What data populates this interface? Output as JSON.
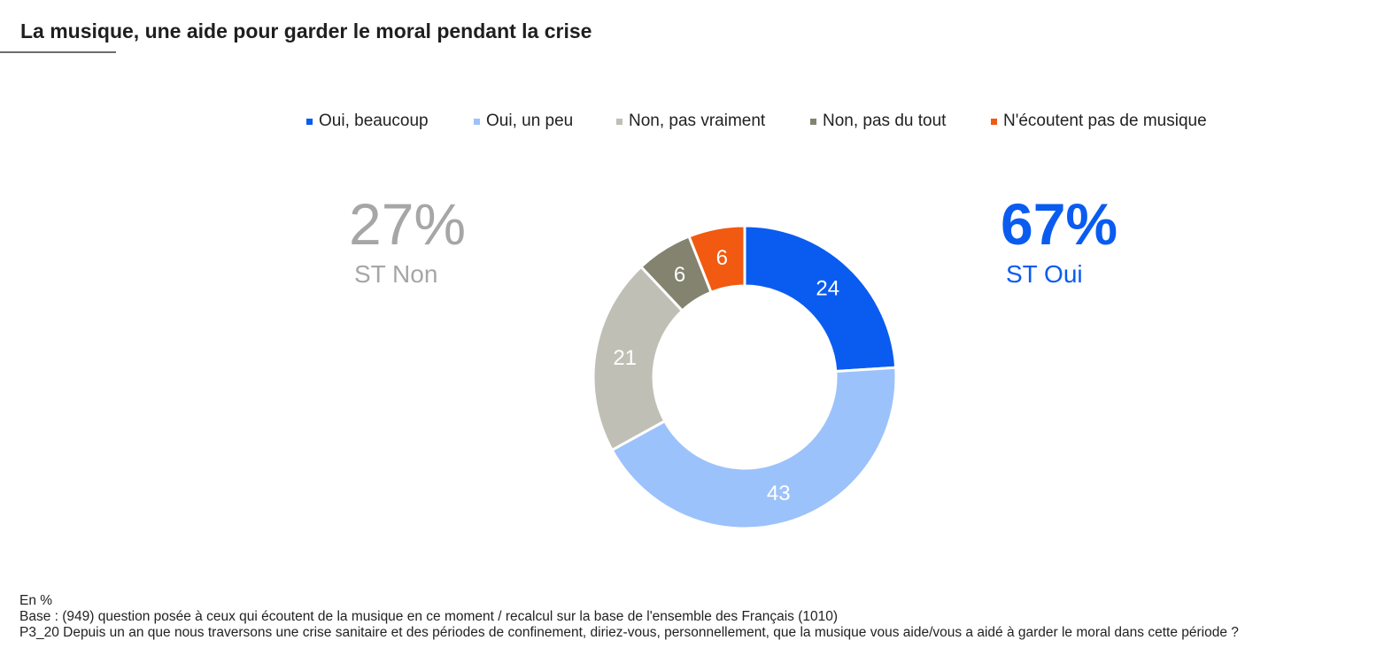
{
  "title": "La musique, une aide pour garder le moral pendant la crise",
  "chart_data": {
    "type": "pie",
    "subtype": "donut",
    "categories": [
      "Oui, beaucoup",
      "Oui, un peu",
      "Non, pas vraiment",
      "Non, pas du tout",
      "N'écoutent pas de musique"
    ],
    "values": [
      24,
      43,
      21,
      6,
      6
    ],
    "colors": [
      "#0a5cf0",
      "#9cc2fb",
      "#bfbfb5",
      "#83836f",
      "#f15a10"
    ],
    "label_colors": [
      "#ffffff",
      "#ffffff",
      "#ffffff",
      "#ffffff",
      "#ffffff"
    ],
    "legend_position": "top",
    "unit": "En %"
  },
  "summary": {
    "st_non": {
      "value": "27%",
      "label": "ST Non",
      "color": "#a6a6a6"
    },
    "st_oui": {
      "value": "67%",
      "label": "ST Oui",
      "color": "#0a5cf0"
    }
  },
  "notes": {
    "unit": "En %",
    "base": "Base : (949) question posée à ceux qui écoutent de la musique en ce moment / recalcul sur la base de l'ensemble des Français (1010)",
    "question": "P3_20 Depuis un an que nous traversons une crise sanitaire et des périodes de confinement, diriez-vous, personnellement, que la musique vous aide/vous a aidé à garder le moral dans cette période ?"
  }
}
